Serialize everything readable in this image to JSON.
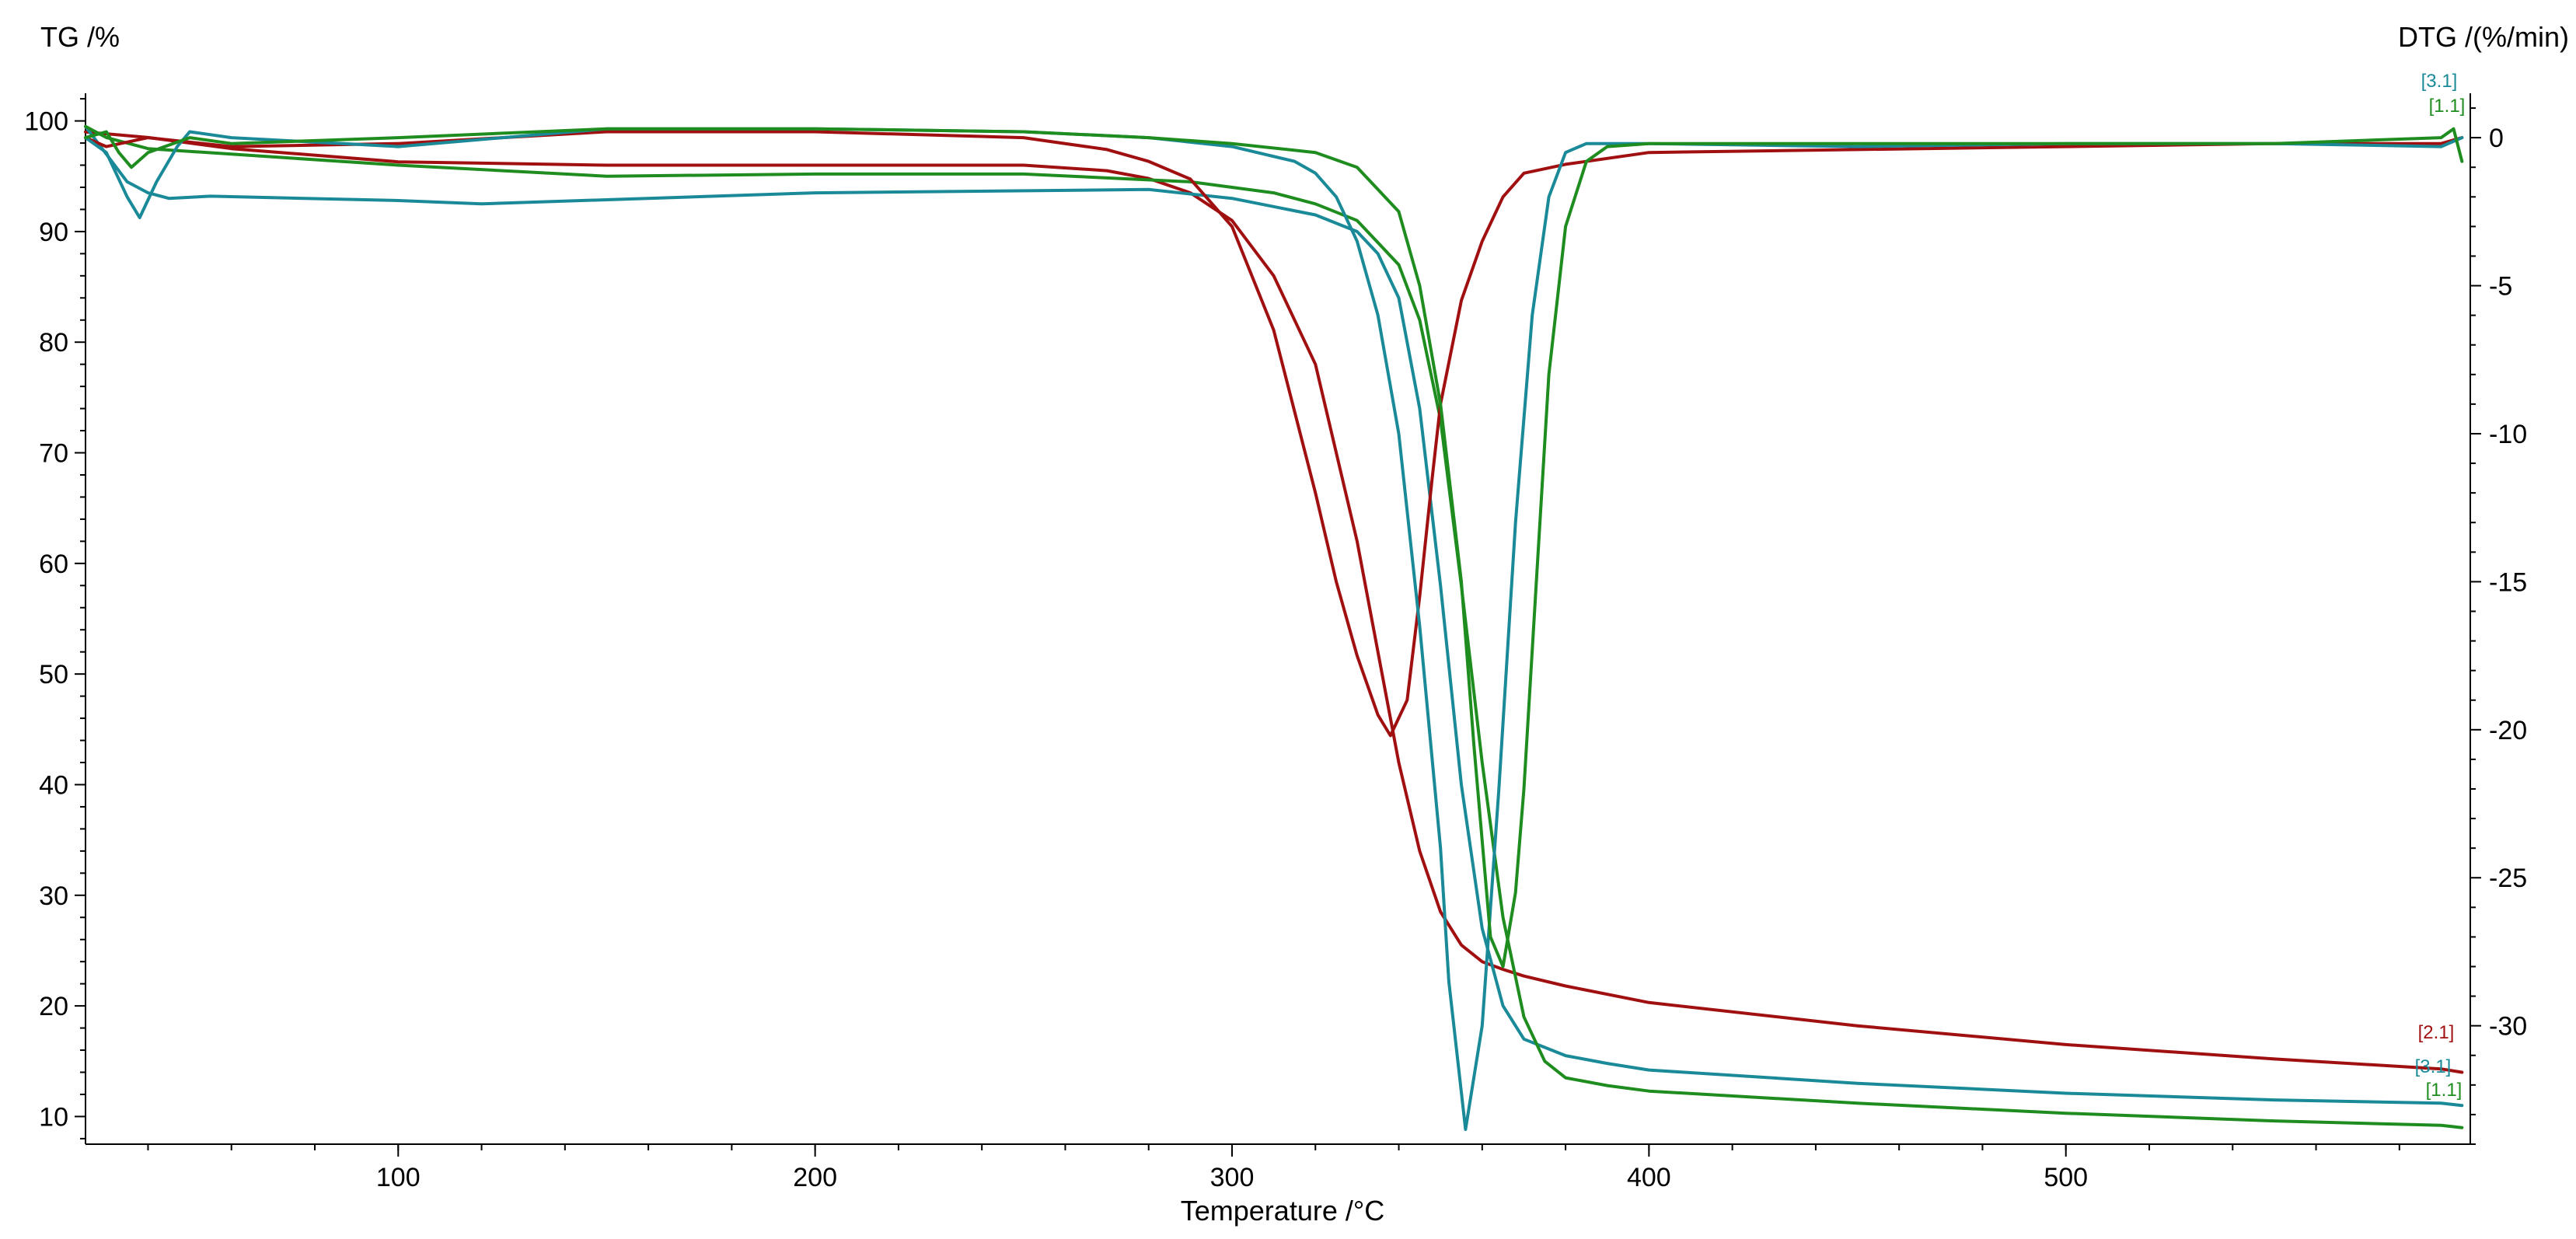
{
  "chart_data": {
    "type": "line",
    "title": "",
    "xlabel": "Temperature /°C",
    "ylabel_left": "TG /%",
    "ylabel_right": "DTG /(%/min)",
    "xlim": [
      25,
      597
    ],
    "ylim_left": [
      7.5,
      102.5
    ],
    "ylim_right": [
      -34,
      1.5
    ],
    "x_ticks": [
      100,
      200,
      300,
      400,
      500
    ],
    "y_left_ticks": [
      10,
      20,
      30,
      40,
      50,
      60,
      70,
      80,
      90,
      100
    ],
    "y_right_ticks": [
      0,
      -5,
      -10,
      -15,
      -20,
      -25,
      -30
    ],
    "grid": false,
    "legend": "none",
    "series": [
      {
        "name": "[2.1]",
        "kind": "TG",
        "axis": "left",
        "color": "#a01010",
        "x": [
          25,
          40,
          60,
          100,
          150,
          200,
          250,
          270,
          280,
          290,
          300,
          310,
          320,
          330,
          335,
          340,
          345,
          350,
          355,
          360,
          365,
          370,
          380,
          400,
          450,
          500,
          550,
          590,
          595
        ],
        "y": [
          99.0,
          98.5,
          97.5,
          96.3,
          96.0,
          96.0,
          96.0,
          95.5,
          94.8,
          93.5,
          91.0,
          86.0,
          78.0,
          62.0,
          52.0,
          42.0,
          34.0,
          28.5,
          25.5,
          24.0,
          23.3,
          22.7,
          21.8,
          20.3,
          18.2,
          16.5,
          15.2,
          14.3,
          14.0
        ]
      },
      {
        "name": "[3.1]",
        "kind": "TG",
        "axis": "left",
        "color": "#1a8a98",
        "x": [
          25,
          30,
          35,
          40,
          45,
          55,
          100,
          120,
          200,
          280,
          300,
          320,
          330,
          335,
          340,
          345,
          350,
          355,
          360,
          365,
          370,
          380,
          390,
          400,
          450,
          500,
          550,
          590,
          595
        ],
        "y": [
          99.5,
          97.0,
          94.5,
          93.5,
          93.0,
          93.2,
          92.8,
          92.5,
          93.5,
          93.8,
          93.0,
          91.5,
          90.0,
          88.0,
          84.0,
          74.0,
          58.0,
          40.0,
          27.0,
          20.0,
          17.0,
          15.5,
          14.8,
          14.2,
          13.0,
          12.1,
          11.5,
          11.2,
          11.0
        ]
      },
      {
        "name": "[1.1]",
        "kind": "TG",
        "axis": "left",
        "color": "#1e8c1e",
        "x": [
          25,
          30,
          40,
          60,
          100,
          150,
          200,
          250,
          290,
          310,
          320,
          330,
          340,
          345,
          350,
          355,
          360,
          365,
          370,
          375,
          380,
          390,
          400,
          450,
          500,
          550,
          590,
          595
        ],
        "y": [
          99.5,
          98.5,
          97.5,
          97.0,
          96.0,
          95.0,
          95.2,
          95.2,
          94.5,
          93.5,
          92.5,
          91.0,
          87.0,
          82.0,
          73.0,
          58.0,
          42.0,
          28.0,
          19.0,
          15.0,
          13.5,
          12.8,
          12.3,
          11.2,
          10.3,
          9.6,
          9.2,
          9.0
        ]
      },
      {
        "name": "[2.1]",
        "kind": "DTG",
        "axis": "right",
        "color": "#a01010",
        "x": [
          25,
          30,
          40,
          60,
          100,
          150,
          200,
          250,
          270,
          280,
          290,
          300,
          310,
          320,
          325,
          330,
          335,
          338,
          342,
          345,
          348,
          350,
          355,
          360,
          365,
          370,
          380,
          400,
          450,
          500,
          550,
          590,
          595
        ],
        "y": [
          0.0,
          -0.3,
          0.0,
          -0.3,
          -0.2,
          0.2,
          0.2,
          0.0,
          -0.4,
          -0.8,
          -1.4,
          -3.0,
          -6.5,
          -12.0,
          -15.0,
          -17.5,
          -19.5,
          -20.2,
          -19.0,
          -15.5,
          -11.5,
          -9.0,
          -5.5,
          -3.5,
          -2.0,
          -1.2,
          -0.9,
          -0.5,
          -0.4,
          -0.3,
          -0.2,
          -0.2,
          0.0
        ]
      },
      {
        "name": "[3.1]",
        "kind": "DTG",
        "axis": "right",
        "color": "#1a8a98",
        "x": [
          25,
          30,
          35,
          38,
          42,
          47,
          50,
          60,
          100,
          150,
          200,
          250,
          280,
          300,
          315,
          320,
          325,
          330,
          335,
          340,
          345,
          350,
          352,
          356,
          360,
          364,
          368,
          372,
          376,
          380,
          385,
          390,
          400,
          450,
          500,
          550,
          590,
          595
        ],
        "y": [
          0.0,
          -0.5,
          -2.0,
          -2.7,
          -1.5,
          -0.3,
          0.2,
          0.0,
          -0.3,
          0.3,
          0.3,
          0.2,
          0.0,
          -0.3,
          -0.8,
          -1.2,
          -2.0,
          -3.5,
          -6.0,
          -10.0,
          -16.5,
          -24.0,
          -28.5,
          -33.5,
          -30.0,
          -22.0,
          -13.0,
          -6.0,
          -2.0,
          -0.5,
          -0.2,
          -0.2,
          -0.2,
          -0.3,
          -0.2,
          -0.2,
          -0.3,
          0.0
        ]
      },
      {
        "name": "[1.1]",
        "kind": "DTG",
        "axis": "right",
        "color": "#1e8c1e",
        "x": [
          25,
          30,
          33,
          36,
          40,
          50,
          60,
          100,
          150,
          200,
          250,
          280,
          300,
          320,
          330,
          340,
          345,
          350,
          355,
          358,
          362,
          365,
          368,
          370,
          373,
          376,
          380,
          385,
          390,
          400,
          450,
          500,
          550,
          590,
          593,
          595
        ],
        "y": [
          0.0,
          0.2,
          -0.5,
          -1.0,
          -0.5,
          0.0,
          -0.2,
          0.0,
          0.3,
          0.3,
          0.2,
          0.0,
          -0.2,
          -0.5,
          -1.0,
          -2.5,
          -5.0,
          -9.0,
          -15.0,
          -20.5,
          -27.0,
          -28.0,
          -25.5,
          -22.0,
          -15.0,
          -8.0,
          -3.0,
          -0.8,
          -0.3,
          -0.2,
          -0.2,
          -0.2,
          -0.2,
          0.0,
          0.3,
          -0.8
        ]
      }
    ],
    "annotations": {
      "right_top_green": "[1.1]",
      "right_top_teal": "[3.1]",
      "right_bottom_red": "[2.1]",
      "right_bottom_teal": "[3.1]",
      "right_bottom_green": "[1.1]"
    }
  }
}
